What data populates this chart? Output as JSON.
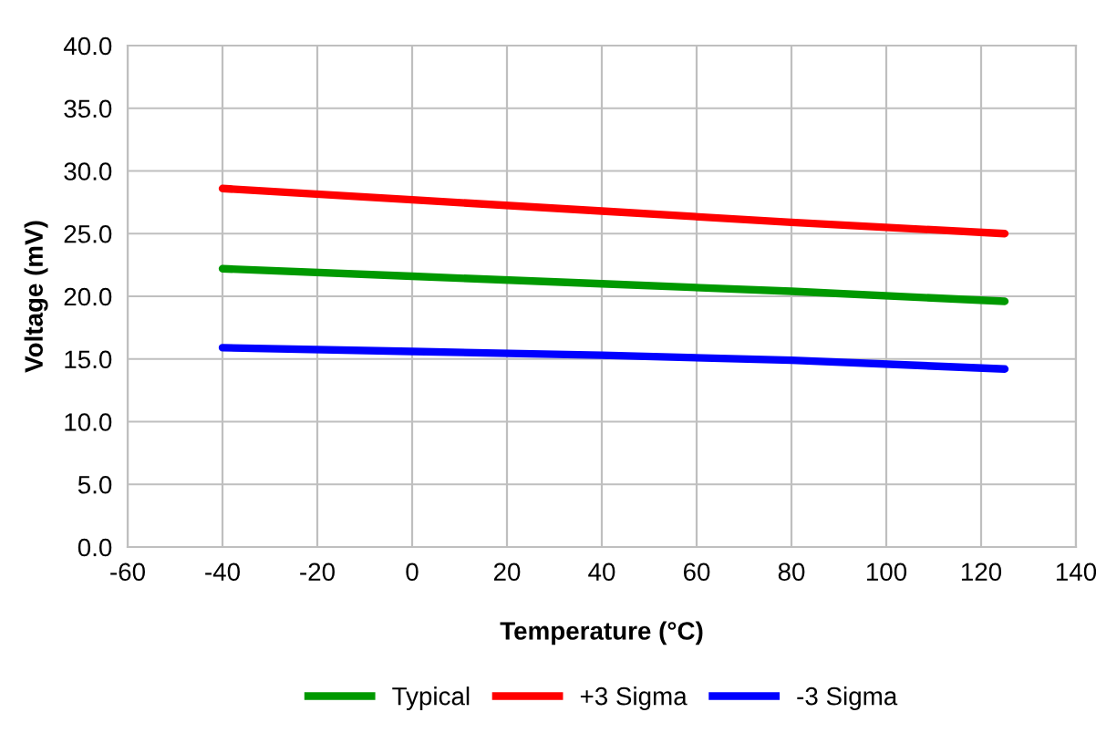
{
  "chart_data": {
    "type": "line",
    "xlabel": "Temperature (°C)",
    "ylabel": "Voltage (mV)",
    "xlim": [
      -60,
      140
    ],
    "xticks": [
      -60,
      -40,
      -20,
      0,
      20,
      40,
      60,
      80,
      100,
      120,
      140
    ],
    "ylim": [
      0,
      40
    ],
    "yticks": [
      {
        "value": 0,
        "label": "0.0"
      },
      {
        "value": 5,
        "label": "5.0"
      },
      {
        "value": 10,
        "label": "10.0"
      },
      {
        "value": 15,
        "label": "15.0"
      },
      {
        "value": 20,
        "label": "20.0"
      },
      {
        "value": 25,
        "label": "25.0"
      },
      {
        "value": 30,
        "label": "30.0"
      },
      {
        "value": 35,
        "label": "35.0"
      },
      {
        "value": 40,
        "label": "40.0"
      }
    ],
    "x": [
      -40,
      0,
      40,
      80,
      125
    ],
    "series": [
      {
        "name": "Typical",
        "color": "#009900",
        "values": [
          22.2,
          21.6,
          21.0,
          20.4,
          19.6
        ]
      },
      {
        "name": "+3 Sigma",
        "color": "#ff0000",
        "values": [
          28.6,
          27.7,
          26.8,
          25.9,
          25.0
        ]
      },
      {
        "name": "-3 Sigma",
        "color": "#0000ff",
        "values": [
          15.9,
          15.6,
          15.3,
          14.9,
          14.2
        ]
      }
    ],
    "grid": true,
    "legend": "bottom",
    "marker": "none",
    "line_style": "solid"
  }
}
